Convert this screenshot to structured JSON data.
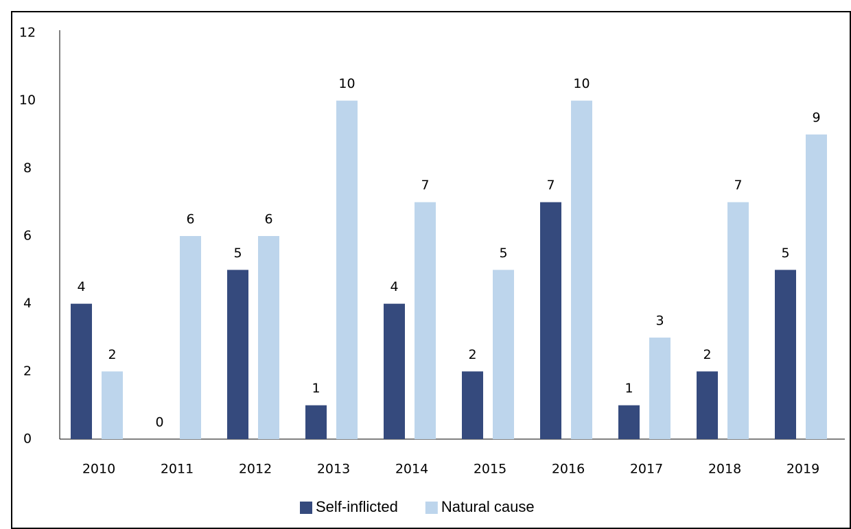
{
  "chart_data": {
    "type": "bar",
    "categories": [
      "2010",
      "2011",
      "2012",
      "2013",
      "2014",
      "2015",
      "2016",
      "2017",
      "2018",
      "2019"
    ],
    "series": [
      {
        "name": "Self-inflicted",
        "color": "#354a7d",
        "values": [
          4,
          0,
          5,
          1,
          4,
          2,
          7,
          1,
          2,
          5
        ]
      },
      {
        "name": "Natural cause",
        "color": "#bdd5ec",
        "values": [
          2,
          6,
          6,
          10,
          7,
          5,
          10,
          3,
          7,
          9
        ]
      }
    ],
    "ylim": [
      0,
      12
    ],
    "yticks": [
      0,
      2,
      4,
      6,
      8,
      10,
      12
    ],
    "grid": false,
    "legend": "bottom"
  }
}
